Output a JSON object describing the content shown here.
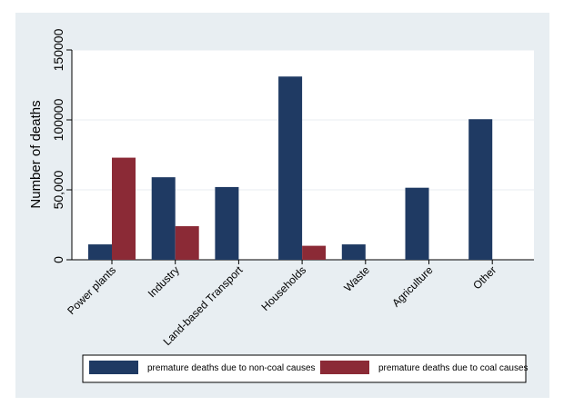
{
  "chart_data": {
    "type": "bar",
    "categories": [
      "Power plants",
      "Industry",
      "Land-based Transport",
      "Households",
      "Waste",
      "Agriculture",
      "Other"
    ],
    "series": [
      {
        "name": "premature deaths due to non-coal causes",
        "color": "#1f3a63",
        "values": [
          11000,
          59000,
          52000,
          131000,
          11000,
          51500,
          100500
        ]
      },
      {
        "name": "premature deaths due to coal causes",
        "color": "#8b2a36",
        "values": [
          73000,
          24000,
          0,
          10000,
          0,
          0,
          0
        ]
      }
    ],
    "ylabel": "Number of deaths",
    "ylim": [
      0,
      150000
    ],
    "yticks": [
      0,
      50000,
      100000,
      150000
    ],
    "ytick_labels": [
      "0",
      "50,000",
      "100000",
      "150000"
    ],
    "grid": true,
    "legend_position": "bottom",
    "colors": {
      "background": "#e8eef2",
      "plot_background": "#ffffff",
      "gridline": "#e8eef2"
    }
  }
}
